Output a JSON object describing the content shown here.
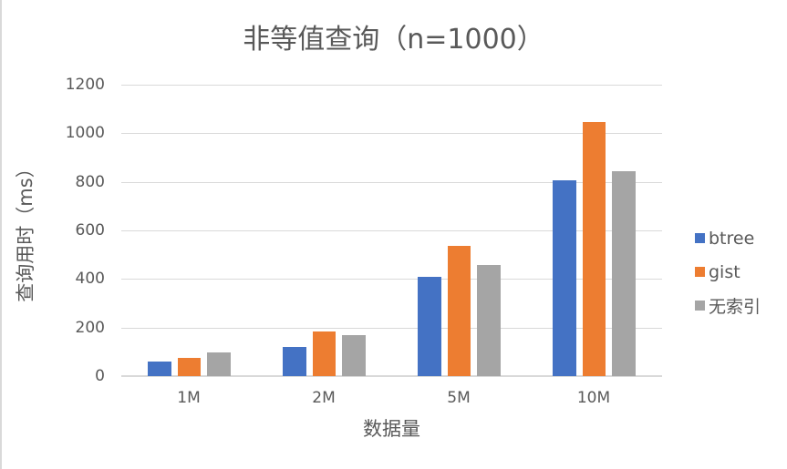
{
  "chart_data": {
    "type": "bar",
    "title": "非等值查询（n=1000）",
    "xlabel": "数据量",
    "ylabel": "查询用时（ms）",
    "categories": [
      "1M",
      "2M",
      "5M",
      "10M"
    ],
    "series": [
      {
        "name": "btree",
        "color": "#4472C4",
        "values": [
          60,
          120,
          410,
          806
        ]
      },
      {
        "name": "gist",
        "color": "#ED7D31",
        "values": [
          75,
          184,
          536,
          1045
        ]
      },
      {
        "name": "无索引",
        "color": "#A5A5A5",
        "values": [
          97,
          169,
          457,
          843
        ]
      }
    ],
    "ylim": [
      0,
      1200
    ],
    "yticks": [
      "0",
      "200",
      "400",
      "600",
      "800",
      "1000",
      "1200"
    ],
    "grid": true,
    "legend_position": "right"
  }
}
